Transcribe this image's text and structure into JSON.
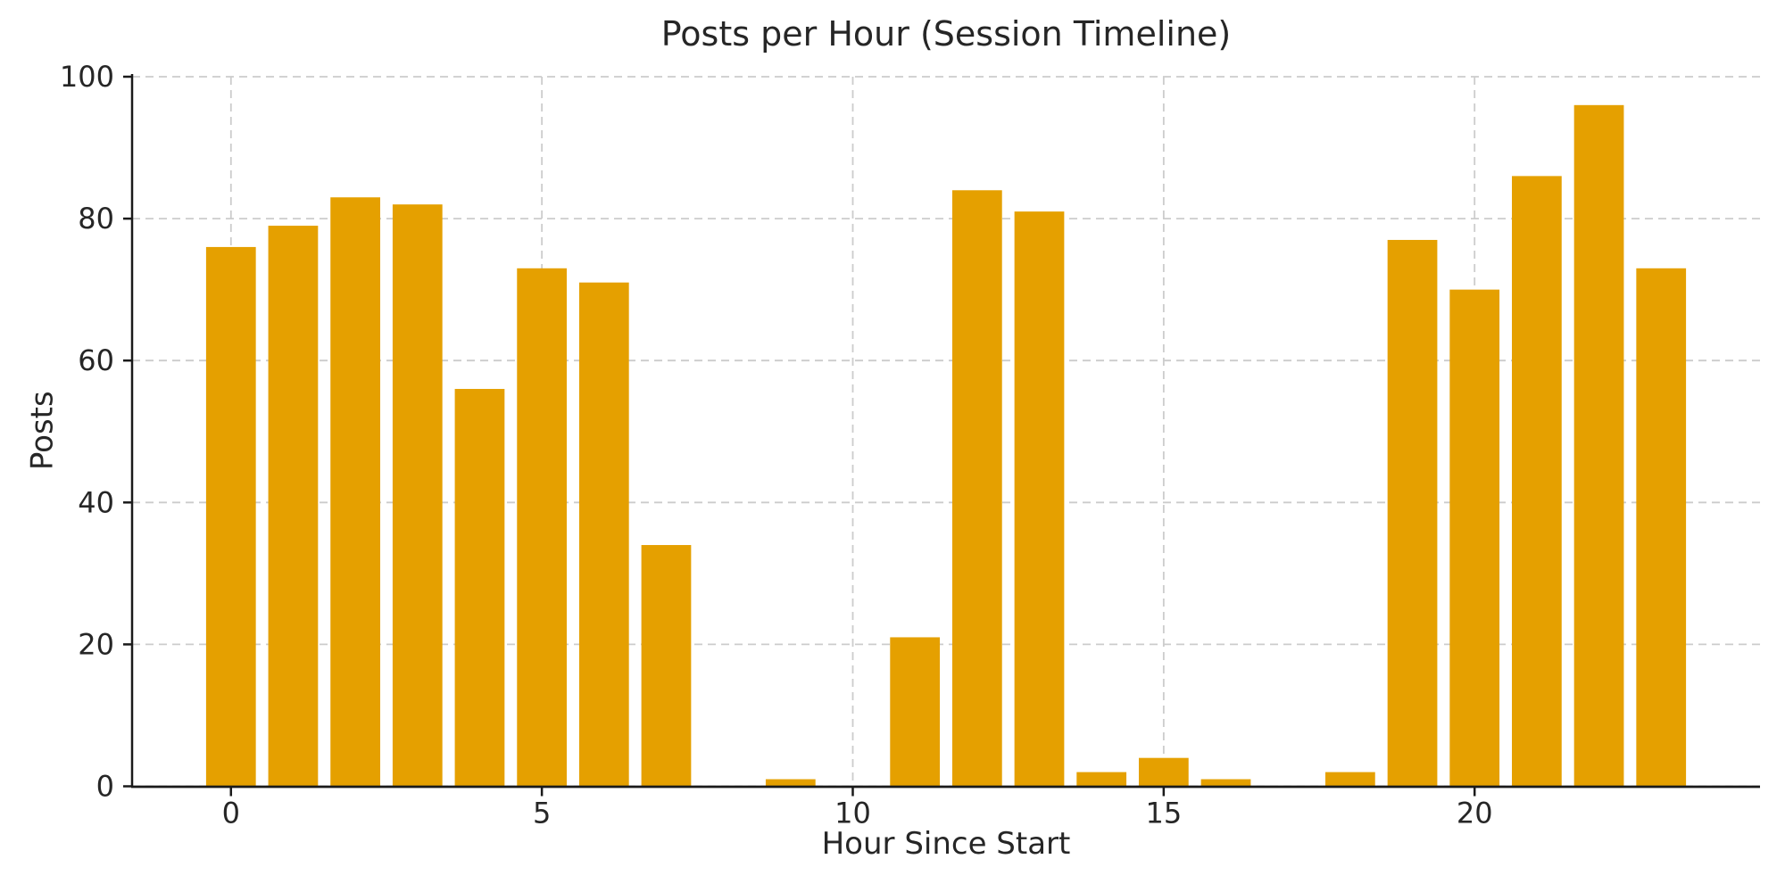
{
  "chart_data": {
    "type": "bar",
    "title": "Posts per Hour (Session Timeline)",
    "xlabel": "Hour Since Start",
    "ylabel": "Posts",
    "categories": [
      0,
      1,
      2,
      3,
      4,
      5,
      6,
      7,
      8,
      9,
      10,
      11,
      12,
      13,
      14,
      15,
      16,
      17,
      18,
      19,
      20,
      21,
      22,
      23
    ],
    "values": [
      76,
      79,
      83,
      82,
      56,
      73,
      71,
      34,
      0,
      1,
      0,
      21,
      84,
      81,
      2,
      4,
      1,
      0,
      2,
      77,
      70,
      86,
      96,
      73
    ],
    "xticks": [
      0,
      5,
      10,
      15,
      20
    ],
    "yticks": [
      0,
      20,
      40,
      60,
      80,
      100
    ],
    "xlim": [
      -1.59,
      24.59
    ],
    "ylim": [
      0,
      100
    ],
    "bar_width_fraction": 0.8,
    "grid": true,
    "grid_style": "dashed",
    "legend": "none",
    "colors": {
      "bar": "#E5A000",
      "axis": "#1a1a1a",
      "grid": "#cccccc",
      "text": "#262626",
      "background": "#ffffff"
    }
  }
}
